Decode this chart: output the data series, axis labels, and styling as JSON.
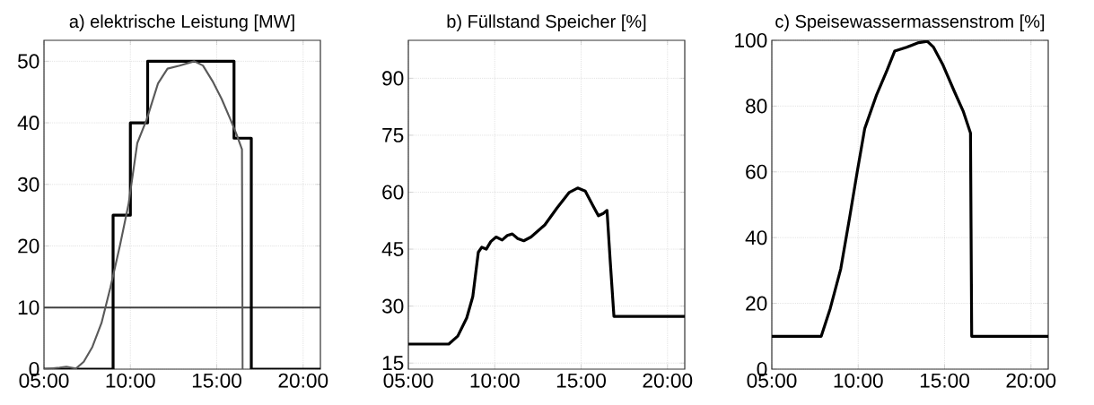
{
  "chart_data": [
    {
      "type": "line",
      "title": "a) elektrische Leistung [MW]",
      "xlim": [
        5,
        21
      ],
      "ylim": [
        0,
        53.4
      ],
      "xticks": [
        {
          "value": 5,
          "label": "05:00"
        },
        {
          "value": 10,
          "label": "10:00"
        },
        {
          "value": 15,
          "label": "15:00"
        },
        {
          "value": 20,
          "label": "20:00"
        }
      ],
      "yticks": [
        0,
        10,
        20,
        30,
        40,
        50
      ],
      "grid": true,
      "ref_lines": [
        {
          "axis": "y",
          "value": 10,
          "color": "#404040"
        }
      ],
      "series": [
        {
          "type": "step",
          "color": "#000000",
          "x": [
            5,
            9,
            10,
            11,
            16,
            17,
            21
          ],
          "values": [
            0,
            25,
            40,
            50,
            37.5,
            0,
            0
          ]
        },
        {
          "type": "line",
          "color": "#5a5a5a",
          "x": [
            5,
            5.9,
            6.3,
            6.85,
            7.3,
            7.8,
            8.33,
            8.85,
            9.4,
            9.9,
            10.4,
            10.94,
            11.6,
            12.15,
            12.85,
            13.7,
            14.2,
            14.75,
            15.28,
            15.8,
            16.15,
            16.46,
            16.5
          ],
          "values": [
            0,
            0.25,
            0.4,
            0.1,
            1.2,
            3.6,
            7.5,
            13.3,
            20.1,
            26.9,
            36.7,
            40.5,
            46.4,
            48.8,
            49.3,
            50,
            49.3,
            46.8,
            43.9,
            40.5,
            38.1,
            35.7,
            0
          ]
        }
      ]
    },
    {
      "type": "line",
      "title": "b) Füllstand Speicher [%]",
      "xlim": [
        5,
        21
      ],
      "ylim": [
        13.4,
        100
      ],
      "xticks": [
        {
          "value": 5,
          "label": "05:00"
        },
        {
          "value": 10,
          "label": "10:00"
        },
        {
          "value": 15,
          "label": "15:00"
        },
        {
          "value": 20,
          "label": "20:00"
        }
      ],
      "yticks": [
        15,
        30,
        45,
        60,
        75,
        90
      ],
      "grid": true,
      "series": [
        {
          "color": "#000000",
          "x": [
            5,
            7.34,
            7.86,
            8.38,
            8.73,
            9.05,
            9.25,
            9.51,
            9.77,
            10.08,
            10.43,
            10.73,
            11.02,
            11.33,
            11.68,
            12.1,
            12.9,
            13.6,
            14.3,
            14.8,
            15.24,
            15.67,
            16.0,
            16.28,
            16.5,
            16.68,
            16.9,
            21
          ],
          "values": [
            20,
            20,
            22.1,
            26.9,
            32.5,
            44.2,
            45.5,
            45,
            47,
            48.2,
            47.4,
            48.6,
            49,
            47.8,
            47.2,
            48.2,
            51.4,
            55.8,
            59.9,
            61.1,
            60.3,
            56.6,
            53.8,
            54.4,
            55.2,
            42.2,
            27.3,
            27.3
          ]
        }
      ]
    },
    {
      "type": "line",
      "title": "c) Speisewassermassenstrom [%]",
      "xlim": [
        5,
        21
      ],
      "ylim": [
        0,
        100
      ],
      "xticks": [
        {
          "value": 5,
          "label": "05:00"
        },
        {
          "value": 10,
          "label": "10:00"
        },
        {
          "value": 15,
          "label": "15:00"
        },
        {
          "value": 20,
          "label": "20:00"
        }
      ],
      "yticks": [
        0,
        20,
        40,
        60,
        80,
        100
      ],
      "grid": true,
      "series": [
        {
          "color": "#000000",
          "x": [
            5,
            7.86,
            8.38,
            8.99,
            9.51,
            9.95,
            10.38,
            11.07,
            11.67,
            12.11,
            12.8,
            13.5,
            14.0,
            14.36,
            14.88,
            15.57,
            16.09,
            16.5,
            16.57,
            21
          ],
          "values": [
            10,
            10,
            18.4,
            30.5,
            46.3,
            60.2,
            73.2,
            83.5,
            90.9,
            96.7,
            97.9,
            99.3,
            99.7,
            97.9,
            92.8,
            84.4,
            78.3,
            71.8,
            10,
            10
          ]
        }
      ]
    }
  ]
}
